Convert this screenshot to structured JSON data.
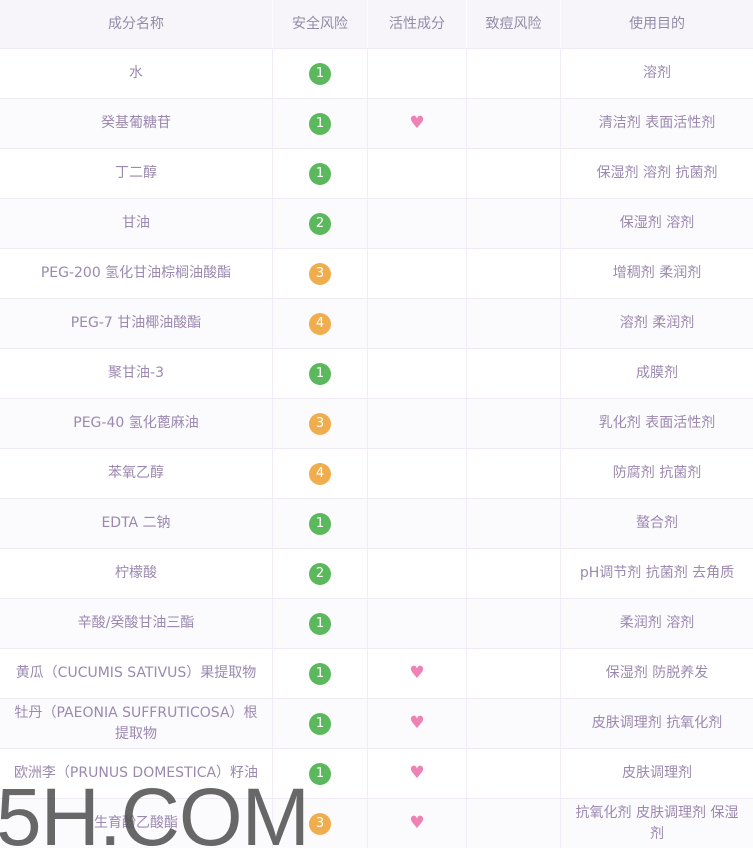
{
  "header": {
    "columns": [
      "成分名称",
      "安全风险",
      "活性成分",
      "致痘风险",
      "使用目的"
    ]
  },
  "colors": {
    "green": "#5cb85c",
    "orange": "#f0ad4e",
    "heart": "#ee82b4"
  },
  "heart_glyph": "♥",
  "watermark": "5H.COM",
  "rows": [
    {
      "name": "水",
      "safety": "1",
      "safety_level": "green",
      "active": false,
      "acne": "",
      "purpose": "溶剂"
    },
    {
      "name": "癸基葡糖苷",
      "safety": "1",
      "safety_level": "green",
      "active": true,
      "acne": "",
      "purpose": "清洁剂 表面活性剂"
    },
    {
      "name": "丁二醇",
      "safety": "1",
      "safety_level": "green",
      "active": false,
      "acne": "",
      "purpose": "保湿剂 溶剂 抗菌剂"
    },
    {
      "name": "甘油",
      "safety": "2",
      "safety_level": "green",
      "active": false,
      "acne": "",
      "purpose": "保湿剂 溶剂"
    },
    {
      "name": "PEG-200 氢化甘油棕榈油酸酯",
      "safety": "3",
      "safety_level": "orange",
      "active": false,
      "acne": "",
      "purpose": "增稠剂 柔润剂"
    },
    {
      "name": "PEG-7 甘油椰油酸酯",
      "safety": "4",
      "safety_level": "orange",
      "active": false,
      "acne": "",
      "purpose": "溶剂 柔润剂"
    },
    {
      "name": "聚甘油-3",
      "safety": "1",
      "safety_level": "green",
      "active": false,
      "acne": "",
      "purpose": "成膜剂"
    },
    {
      "name": "PEG-40 氢化蓖麻油",
      "safety": "3",
      "safety_level": "orange",
      "active": false,
      "acne": "",
      "purpose": "乳化剂 表面活性剂"
    },
    {
      "name": "苯氧乙醇",
      "safety": "4",
      "safety_level": "orange",
      "active": false,
      "acne": "",
      "purpose": "防腐剂 抗菌剂"
    },
    {
      "name": "EDTA 二钠",
      "safety": "1",
      "safety_level": "green",
      "active": false,
      "acne": "",
      "purpose": "螯合剂"
    },
    {
      "name": "柠檬酸",
      "safety": "2",
      "safety_level": "green",
      "active": false,
      "acne": "",
      "purpose": "pH调节剂 抗菌剂 去角质"
    },
    {
      "name": "辛酸/癸酸甘油三酯",
      "safety": "1",
      "safety_level": "green",
      "active": false,
      "acne": "",
      "purpose": "柔润剂 溶剂"
    },
    {
      "name": "黄瓜（CUCUMIS SATIVUS）果提取物",
      "safety": "1",
      "safety_level": "green",
      "active": true,
      "acne": "",
      "purpose": "保湿剂 防脱养发"
    },
    {
      "name": "牡丹（PAEONIA SUFFRUTICOSA）根提取物",
      "safety": "1",
      "safety_level": "green",
      "active": true,
      "acne": "",
      "purpose": "皮肤调理剂 抗氧化剂"
    },
    {
      "name": "欧洲李（PRUNUS DOMESTICA）籽油",
      "safety": "1",
      "safety_level": "green",
      "active": true,
      "acne": "",
      "purpose": "皮肤调理剂"
    },
    {
      "name": "生育酚乙酸酯",
      "safety": "3",
      "safety_level": "orange",
      "active": true,
      "acne": "",
      "purpose": "抗氧化剂 皮肤调理剂 保湿剂"
    }
  ]
}
